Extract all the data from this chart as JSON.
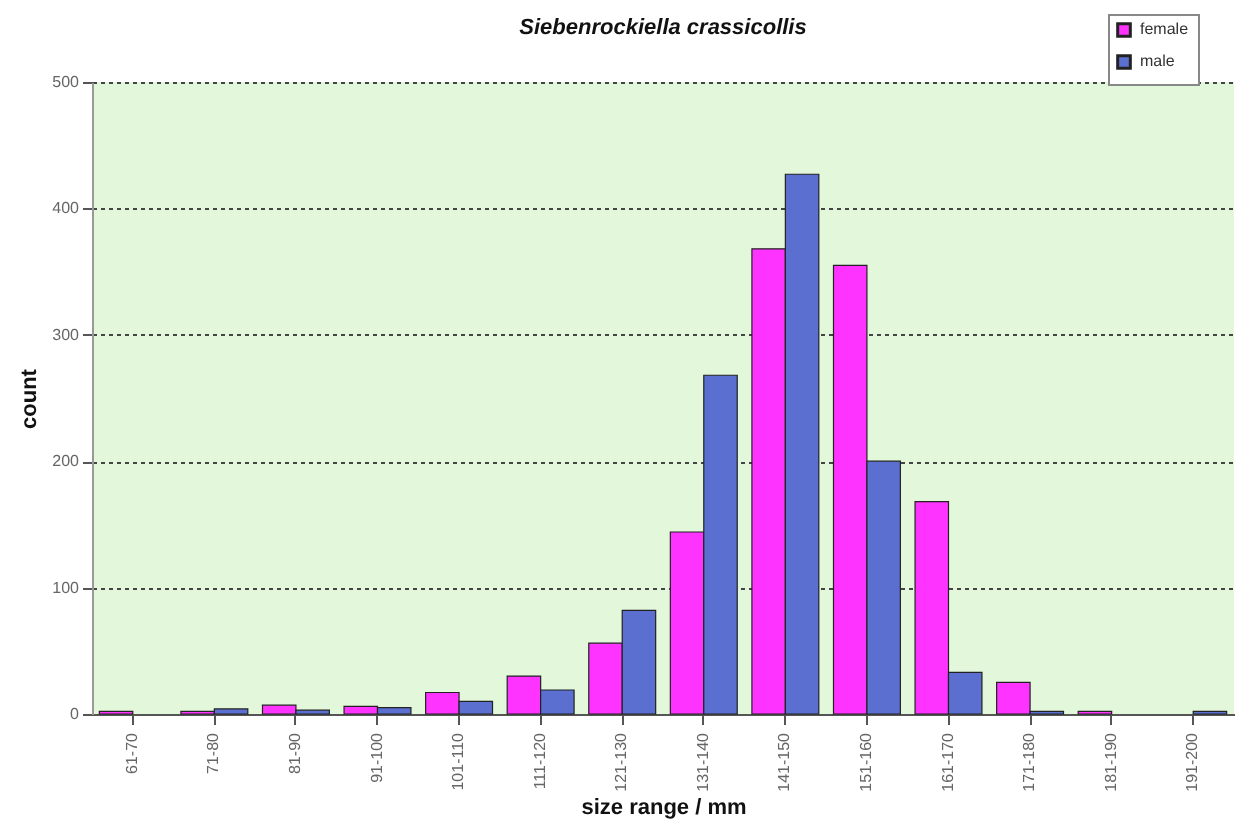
{
  "chart_data": {
    "type": "bar",
    "title": "Siebenrockiella crassicollis",
    "xlabel": "size range / mm",
    "ylabel": "count",
    "categories": [
      "61-70",
      "71-80",
      "81-90",
      "91-100",
      "101-110",
      "111-120",
      "121-130",
      "131-140",
      "141-150",
      "151-160",
      "161-170",
      "171-180",
      "181-190",
      "191-200"
    ],
    "series": [
      {
        "name": "female",
        "color": "#ff33ff",
        "values": [
          2,
          2,
          7,
          6,
          17,
          30,
          56,
          144,
          368,
          355,
          168,
          25,
          2,
          0
        ]
      },
      {
        "name": "male",
        "color": "#5a6fd0",
        "values": [
          0,
          4,
          3,
          5,
          10,
          19,
          82,
          268,
          427,
          200,
          33,
          2,
          0,
          2
        ]
      }
    ],
    "ylim": [
      0,
      500
    ],
    "yticks": [
      0,
      100,
      200,
      300,
      400,
      500
    ],
    "grid": "y",
    "legend": "top right"
  }
}
